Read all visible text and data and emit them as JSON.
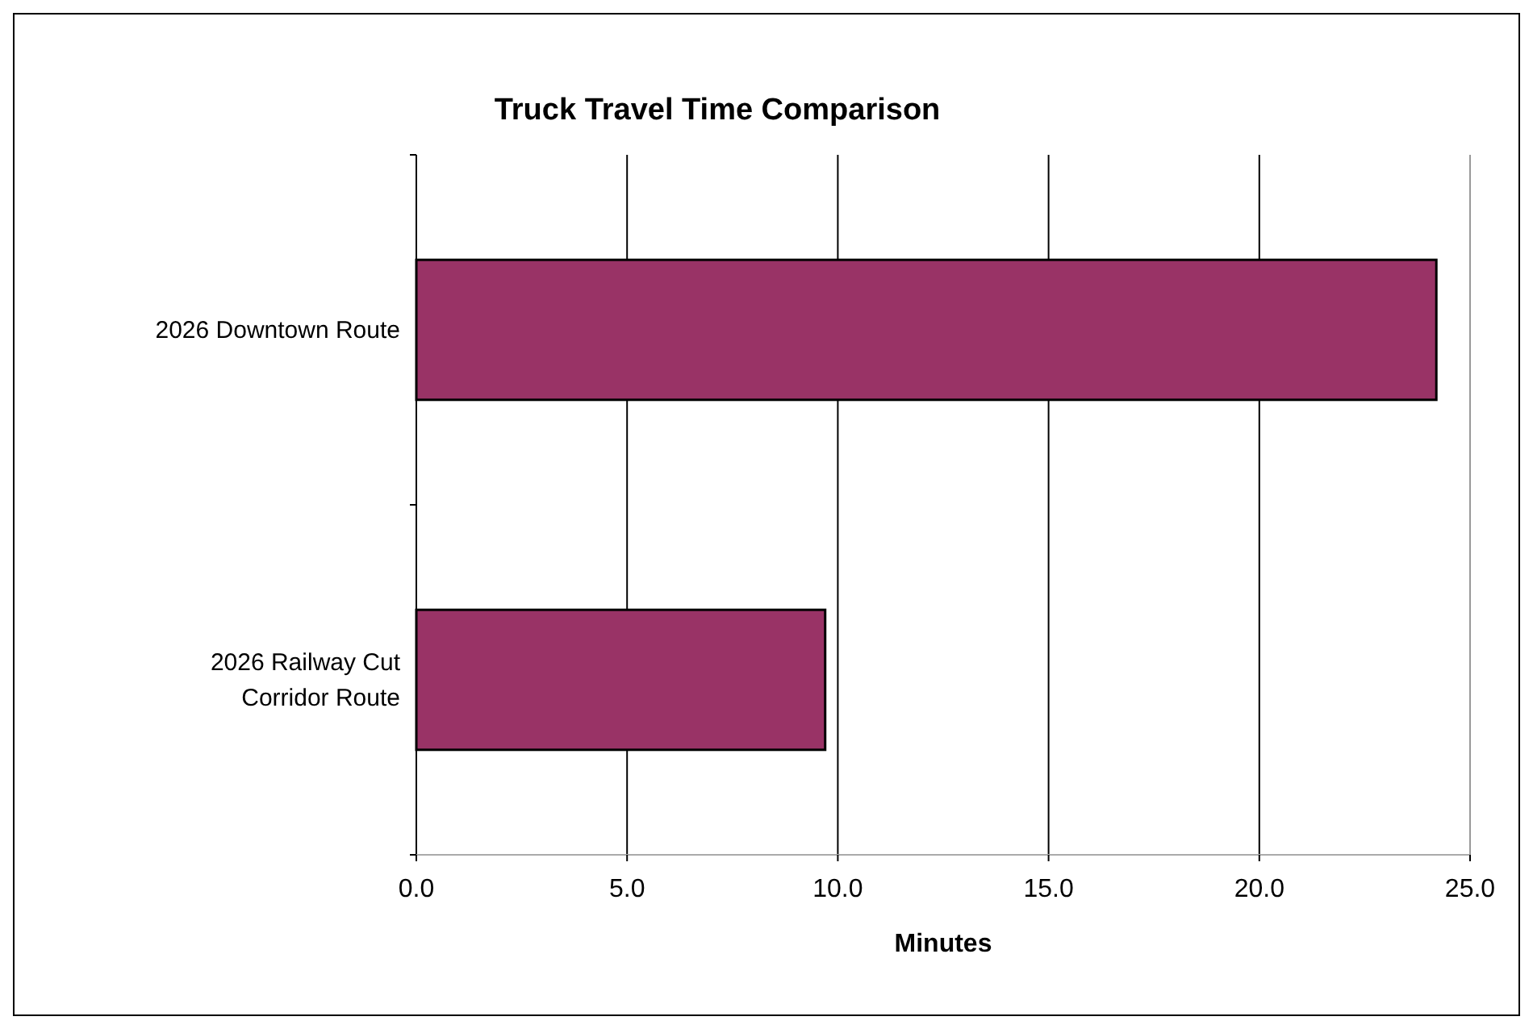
{
  "chart_data": {
    "type": "bar",
    "orientation": "horizontal",
    "title": "Truck Travel Time Comparison",
    "xlabel": "Minutes",
    "categories": [
      "2026 Downtown Route",
      "2026 Railway Cut Corridor Route"
    ],
    "values": [
      24.2,
      9.7
    ],
    "color": "#993366",
    "xlim": [
      0,
      25
    ],
    "xticks": [
      {
        "value": 0,
        "label": "0.0"
      },
      {
        "value": 5,
        "label": "5.0"
      },
      {
        "value": 10,
        "label": "10.0"
      },
      {
        "value": 15,
        "label": "15.0"
      },
      {
        "value": 20,
        "label": "20.0"
      },
      {
        "value": 25,
        "label": "25.0"
      }
    ],
    "grid": "x"
  }
}
